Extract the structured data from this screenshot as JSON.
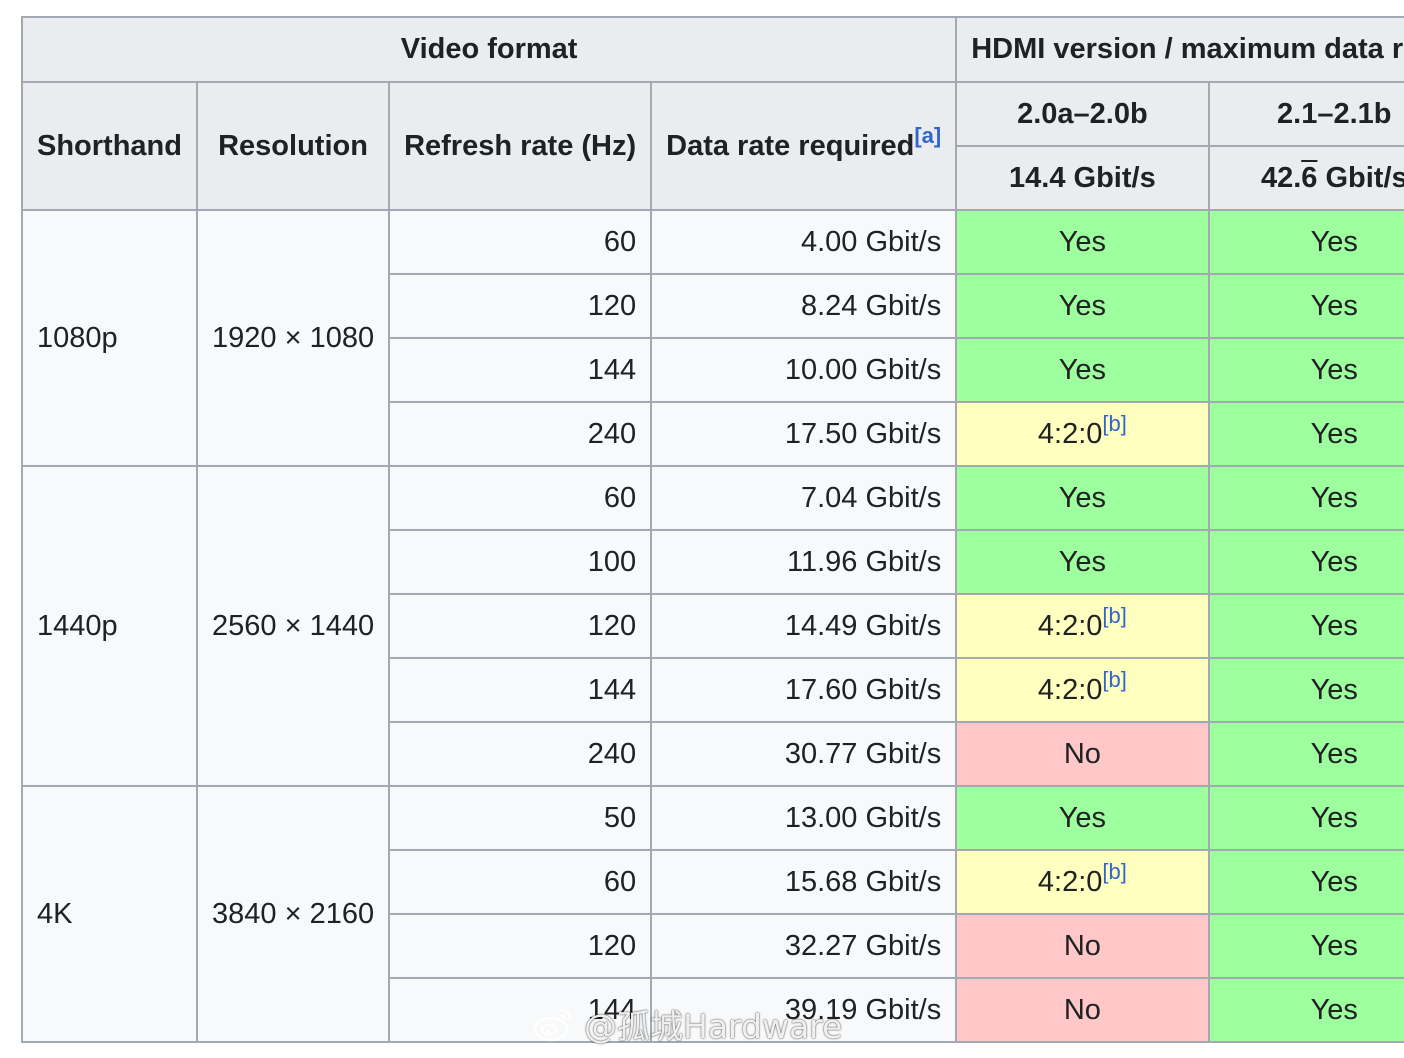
{
  "header": {
    "video_format": "Video format",
    "hdmi_version": "HDMI version / maximum data rate",
    "shorthand": "Shorthand",
    "resolution": "Resolution",
    "refresh_rate": "Refresh rate (Hz)",
    "data_rate": "Data rate required",
    "data_rate_ref": "[a]",
    "versions": [
      {
        "name": "2.0a–2.0b",
        "rate": "14.4 Gbit/s"
      },
      {
        "name": "2.1–2.1b",
        "rate_prefix": "42.",
        "rate_overline": "6",
        "rate_suffix": " Gbit/s"
      }
    ]
  },
  "status_colors": {
    "yes": "#9EFF9E",
    "partial": "#FFFFC0",
    "no": "#FFC7C7"
  },
  "groups": [
    {
      "shorthand": "1080p",
      "resolution": "1920 × 1080",
      "rows": [
        {
          "refresh": "60",
          "data_rate": "4.00 Gbit/s",
          "v20": {
            "text": "Yes",
            "status": "yes"
          },
          "v21": {
            "text": "Yes",
            "status": "yes"
          }
        },
        {
          "refresh": "120",
          "data_rate": "8.24 Gbit/s",
          "v20": {
            "text": "Yes",
            "status": "yes"
          },
          "v21": {
            "text": "Yes",
            "status": "yes"
          }
        },
        {
          "refresh": "144",
          "data_rate": "10.00 Gbit/s",
          "v20": {
            "text": "Yes",
            "status": "yes"
          },
          "v21": {
            "text": "Yes",
            "status": "yes"
          }
        },
        {
          "refresh": "240",
          "data_rate": "17.50 Gbit/s",
          "v20": {
            "text": "4:2:0",
            "ref": "[b]",
            "status": "partial"
          },
          "v21": {
            "text": "Yes",
            "status": "yes"
          }
        }
      ]
    },
    {
      "shorthand": "1440p",
      "resolution": "2560 × 1440",
      "rows": [
        {
          "refresh": "60",
          "data_rate": "7.04 Gbit/s",
          "v20": {
            "text": "Yes",
            "status": "yes"
          },
          "v21": {
            "text": "Yes",
            "status": "yes"
          }
        },
        {
          "refresh": "100",
          "data_rate": "11.96 Gbit/s",
          "v20": {
            "text": "Yes",
            "status": "yes"
          },
          "v21": {
            "text": "Yes",
            "status": "yes"
          }
        },
        {
          "refresh": "120",
          "data_rate": "14.49 Gbit/s",
          "v20": {
            "text": "4:2:0",
            "ref": "[b]",
            "status": "partial"
          },
          "v21": {
            "text": "Yes",
            "status": "yes"
          }
        },
        {
          "refresh": "144",
          "data_rate": "17.60 Gbit/s",
          "v20": {
            "text": "4:2:0",
            "ref": "[b]",
            "status": "partial"
          },
          "v21": {
            "text": "Yes",
            "status": "yes"
          }
        },
        {
          "refresh": "240",
          "data_rate": "30.77 Gbit/s",
          "v20": {
            "text": "No",
            "status": "no"
          },
          "v21": {
            "text": "Yes",
            "status": "yes"
          }
        }
      ]
    },
    {
      "shorthand": "4K",
      "resolution": "3840 × 2160",
      "rows": [
        {
          "refresh": "50",
          "data_rate": "13.00 Gbit/s",
          "v20": {
            "text": "Yes",
            "status": "yes"
          },
          "v21": {
            "text": "Yes",
            "status": "yes"
          }
        },
        {
          "refresh": "60",
          "data_rate": "15.68 Gbit/s",
          "v20": {
            "text": "4:2:0",
            "ref": "[b]",
            "status": "partial"
          },
          "v21": {
            "text": "Yes",
            "status": "yes"
          }
        },
        {
          "refresh": "120",
          "data_rate": "32.27 Gbit/s",
          "v20": {
            "text": "No",
            "status": "no"
          },
          "v21": {
            "text": "Yes",
            "status": "yes"
          }
        },
        {
          "refresh": "144",
          "data_rate": "39.19 Gbit/s",
          "v20": {
            "text": "No",
            "status": "no"
          },
          "v21": {
            "text": "Yes",
            "status": "yes"
          }
        }
      ]
    }
  ],
  "watermark": {
    "text": "@孤城Hardware",
    "icon": "weibo-logo-icon"
  }
}
